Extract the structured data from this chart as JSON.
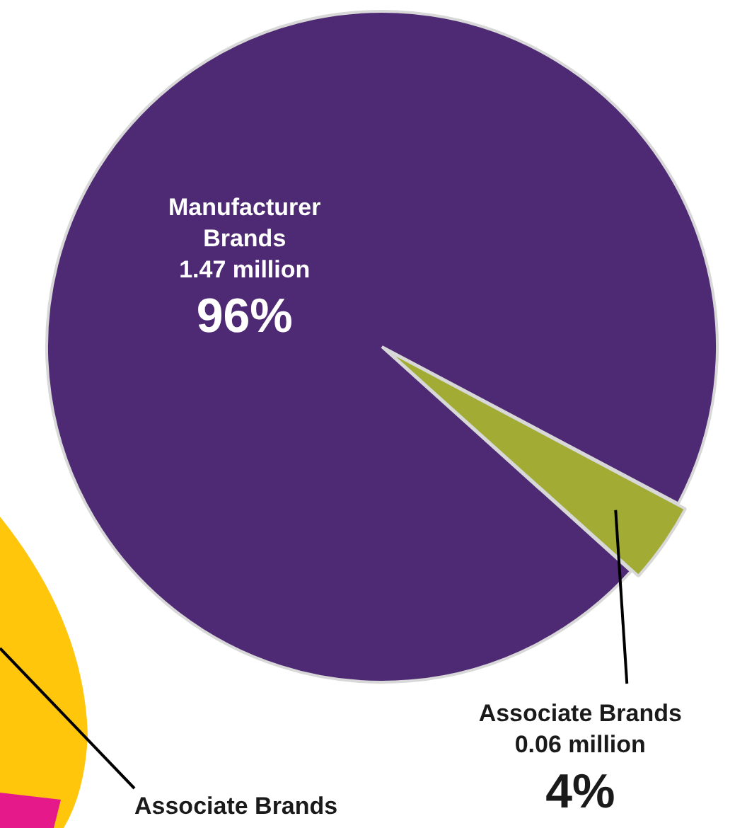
{
  "chart_data": {
    "type": "pie",
    "categories": [
      "Manufacturer Brands",
      "Associate Brands"
    ],
    "values": [
      1.47,
      0.06
    ],
    "colors": [
      "#4f2a74",
      "#a2ac35"
    ],
    "value_labels": [
      "1.47 million",
      "0.06 million"
    ],
    "annotations": [
      {
        "text": "96%",
        "x": "Manufacturer Brands"
      },
      {
        "text": "4%",
        "x": "Associate Brands"
      },
      "Associate Brands"
    ],
    "legend": false
  }
}
